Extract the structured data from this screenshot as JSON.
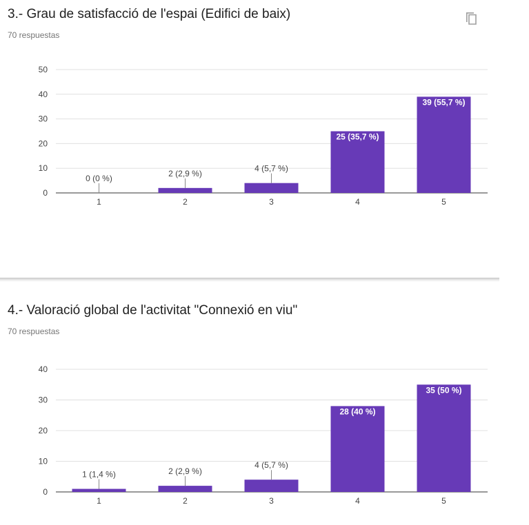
{
  "questions": [
    {
      "title": "3.- Grau de satisfacció de l'espai (Edifici de baix)",
      "responses": "70 respuestas",
      "copy_icon": "copy-icon"
    },
    {
      "title": "4.- Valoració global de l'activitat \"Connexió en viu\"",
      "responses": "70 respuestas"
    }
  ],
  "colors": {
    "bar": "#673ab7",
    "grid": "#e0e0e0",
    "axis": "#333333",
    "label": "#444444"
  },
  "chart_data": [
    {
      "type": "bar",
      "categories": [
        "1",
        "2",
        "3",
        "4",
        "5"
      ],
      "values": [
        0,
        2,
        4,
        25,
        39
      ],
      "data_labels": [
        "0 (0 %)",
        "2 (2,9 %)",
        "4 (5,7 %)",
        "25 (35,7 %)",
        "39 (55,7 %)"
      ],
      "yticks": [
        "0",
        "10",
        "20",
        "30",
        "40",
        "50"
      ],
      "ylim": [
        0,
        50
      ],
      "grid": true
    },
    {
      "type": "bar",
      "categories": [
        "1",
        "2",
        "3",
        "4",
        "5"
      ],
      "values": [
        1,
        2,
        4,
        28,
        35
      ],
      "data_labels": [
        "1 (1,4 %)",
        "2 (2,9 %)",
        "4 (5,7 %)",
        "28 (40 %)",
        "35 (50 %)"
      ],
      "yticks": [
        "0",
        "10",
        "20",
        "30",
        "40"
      ],
      "ylim": [
        0,
        40
      ],
      "grid": true
    }
  ]
}
